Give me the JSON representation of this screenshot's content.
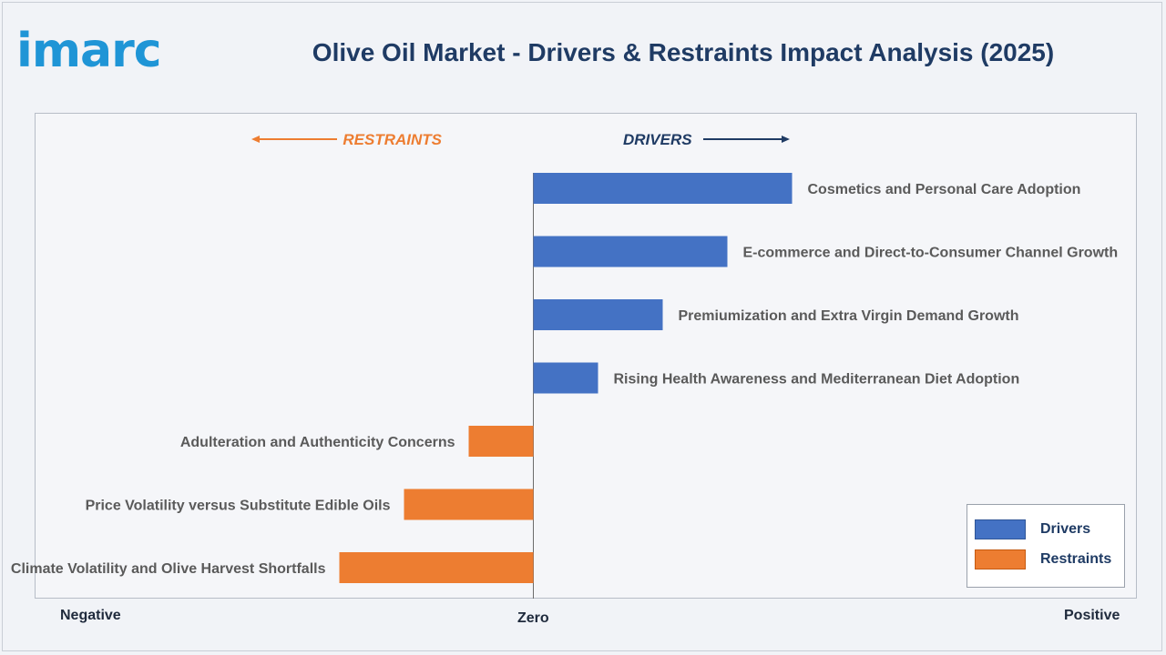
{
  "header": {
    "logo_text": "imarc",
    "title": "Olive Oil Market - Drivers & Restraints Impact Analysis (2025)"
  },
  "colors": {
    "drivers": "#4472c4",
    "restraints": "#ed7d31",
    "drivers_header": "#1f3b64",
    "restraints_header": "#ed7d31",
    "label_text": "#5a5a5a"
  },
  "axis": {
    "negative_label": "Negative",
    "zero_label": "Zero",
    "positive_label": "Positive"
  },
  "chart_data": {
    "type": "bar",
    "orientation": "horizontal",
    "title": "Olive Oil Market - Drivers & Restraints Impact Analysis (2025)",
    "xlim": [
      -4,
      4
    ],
    "grid": false,
    "legend_position": "bottom-right",
    "direction_headers": {
      "restraints": "RESTRAINTS",
      "drivers": "DRIVERS"
    },
    "series": [
      {
        "name": "Drivers",
        "categories": [
          "Cosmetics and Personal Care Adoption",
          "E-commerce and Direct-to-Consumer Channel Growth",
          "Premiumization and Extra Virgin Demand Growth",
          "Rising Health Awareness and Mediterranean Diet Adoption"
        ],
        "values": [
          4,
          3,
          2,
          1
        ]
      },
      {
        "name": "Restraints",
        "categories": [
          "Adulteration and Authenticity Concerns",
          "Price Volatility versus Substitute Edible Oils",
          "Climate Volatility and Olive Harvest Shortfalls"
        ],
        "values": [
          -1,
          -2,
          -3
        ]
      }
    ]
  }
}
